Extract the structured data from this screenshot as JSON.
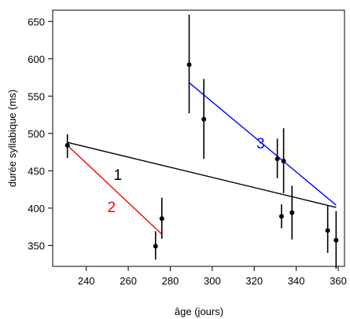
{
  "chart_data": {
    "type": "scatter",
    "xlabel": "âge (jours)",
    "ylabel": "durée syllabique (ms)",
    "xlim": [
      224,
      363
    ],
    "ylim": [
      322,
      665
    ],
    "x_ticks": [
      240,
      260,
      280,
      300,
      320,
      340,
      360
    ],
    "y_ticks": [
      350,
      400,
      450,
      500,
      550,
      600,
      650
    ],
    "points": [
      {
        "x": 231,
        "y": 484,
        "err_low": 467,
        "err_high": 499
      },
      {
        "x": 273,
        "y": 349,
        "err_low": 331,
        "err_high": 369
      },
      {
        "x": 276,
        "y": 386,
        "err_low": 359,
        "err_high": 414
      },
      {
        "x": 289,
        "y": 592,
        "err_low": 527,
        "err_high": 659
      },
      {
        "x": 296,
        "y": 519,
        "err_low": 466,
        "err_high": 573
      },
      {
        "x": 331,
        "y": 466,
        "err_low": 440,
        "err_high": 493
      },
      {
        "x": 333,
        "y": 389,
        "err_low": 373,
        "err_high": 405
      },
      {
        "x": 334,
        "y": 463,
        "err_low": 420,
        "err_high": 507
      },
      {
        "x": 338,
        "y": 394,
        "err_low": 358,
        "err_high": 430
      },
      {
        "x": 355,
        "y": 370,
        "err_low": 340,
        "err_high": 403
      },
      {
        "x": 359,
        "y": 357,
        "err_low": 319,
        "err_high": 396
      }
    ],
    "fit_lines": [
      {
        "label": "1",
        "color": "#000000",
        "x": [
          231,
          359
        ],
        "y": [
          488,
          401
        ],
        "label_at": [
          255,
          445
        ]
      },
      {
        "label": "2",
        "color": "#ff0000",
        "x": [
          231,
          276
        ],
        "y": [
          484,
          365
        ],
        "label_at": [
          252,
          402
        ]
      },
      {
        "label": "3",
        "color": "#0000ff",
        "x": [
          289,
          359
        ],
        "y": [
          568,
          404
        ],
        "label_at": [
          323,
          487
        ]
      }
    ]
  }
}
